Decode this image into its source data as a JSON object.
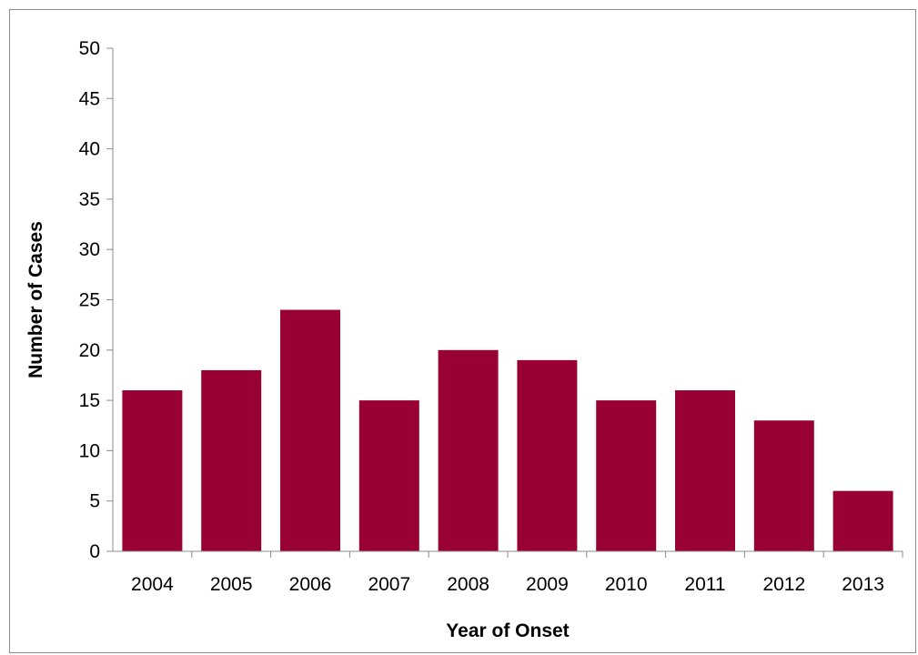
{
  "chart_data": {
    "type": "bar",
    "categories": [
      "2004",
      "2005",
      "2006",
      "2007",
      "2008",
      "2009",
      "2010",
      "2011",
      "2012",
      "2013"
    ],
    "values": [
      16,
      18,
      24,
      15,
      20,
      19,
      15,
      16,
      13,
      6
    ],
    "title": "",
    "xlabel": "Year of Onset",
    "ylabel": "Number of Cases",
    "ylim": [
      0,
      50
    ],
    "yticks": [
      0,
      5,
      10,
      15,
      20,
      25,
      30,
      35,
      40,
      45,
      50
    ],
    "grid": false,
    "legend": "none",
    "bar_color": "#990033"
  }
}
